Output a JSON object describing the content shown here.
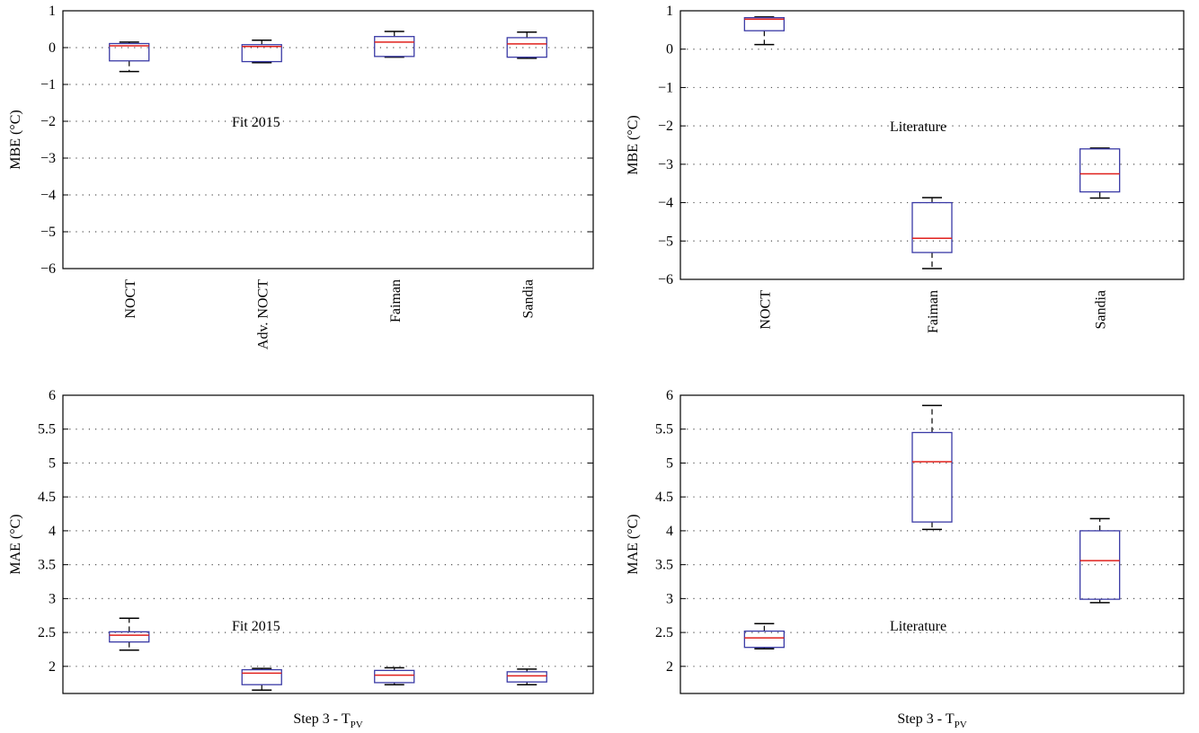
{
  "colors": {
    "box": "#3a3aa6",
    "median": "#e0201c",
    "whisker": "#000000",
    "grid": "#555555",
    "axis": "#000000"
  },
  "chart_data": [
    {
      "type": "boxplot",
      "ylabel": "MBE (°C)",
      "annotation": "Fit 2015",
      "xlabel_main": "",
      "xlabel_sub": "",
      "ylim": [
        -6,
        1
      ],
      "yticks": [
        1,
        0,
        -1,
        -2,
        -3,
        -4,
        -5,
        -6
      ],
      "ytick_labels": [
        "1",
        "0",
        "−1",
        "−2",
        "−3",
        "−4",
        "−5",
        "−6"
      ],
      "grid": true,
      "categories": [
        "NOCT",
        "Adv. NOCT",
        "Faiman",
        "Sandia"
      ],
      "boxes": [
        {
          "min": -0.65,
          "q1": -0.36,
          "median": 0.05,
          "q3": 0.11,
          "max": 0.15
        },
        {
          "min": -0.41,
          "q1": -0.38,
          "median": 0.03,
          "q3": 0.08,
          "max": 0.2
        },
        {
          "min": -0.26,
          "q1": -0.24,
          "median": 0.15,
          "q3": 0.3,
          "max": 0.44
        },
        {
          "min": -0.29,
          "q1": -0.26,
          "median": 0.1,
          "q3": 0.27,
          "max": 0.42
        }
      ]
    },
    {
      "type": "boxplot",
      "ylabel": "MBE (°C)",
      "annotation": "Literature",
      "xlabel_main": "",
      "xlabel_sub": "",
      "ylim": [
        -6,
        1
      ],
      "yticks": [
        1,
        0,
        -1,
        -2,
        -3,
        -4,
        -5,
        -6
      ],
      "ytick_labels": [
        "1",
        "0",
        "−1",
        "−2",
        "−3",
        "−4",
        "−5",
        "−6"
      ],
      "grid": true,
      "categories": [
        "NOCT",
        "Faiman",
        "Sandia"
      ],
      "boxes": [
        {
          "min": 0.12,
          "q1": 0.48,
          "median": 0.78,
          "q3": 0.82,
          "max": 0.84
        },
        {
          "min": -5.72,
          "q1": -5.3,
          "median": -4.93,
          "q3": -4.0,
          "max": -3.87
        },
        {
          "min": -3.88,
          "q1": -3.72,
          "median": -3.25,
          "q3": -2.6,
          "max": -2.58
        }
      ]
    },
    {
      "type": "boxplot",
      "ylabel": "MAE (°C)",
      "annotation": "Fit 2015",
      "xlabel_main": "Step 3 - T",
      "xlabel_sub": "PV",
      "ylim": [
        1.6,
        6
      ],
      "yticks": [
        6,
        5.5,
        5,
        4.5,
        4,
        3.5,
        3,
        2.5,
        2
      ],
      "ytick_labels": [
        "6",
        "5.5",
        "5",
        "4.5",
        "4",
        "3.5",
        "3",
        "2.5",
        "2"
      ],
      "grid": true,
      "categories": [],
      "boxes": [
        {
          "min": 2.24,
          "q1": 2.36,
          "median": 2.46,
          "q3": 2.51,
          "max": 2.71
        },
        {
          "min": 1.65,
          "q1": 1.73,
          "median": 1.9,
          "q3": 1.95,
          "max": 1.97
        },
        {
          "min": 1.73,
          "q1": 1.76,
          "median": 1.87,
          "q3": 1.94,
          "max": 1.98
        },
        {
          "min": 1.73,
          "q1": 1.77,
          "median": 1.86,
          "q3": 1.92,
          "max": 1.96
        }
      ]
    },
    {
      "type": "boxplot",
      "ylabel": "MAE (°C)",
      "annotation": "Literature",
      "xlabel_main": "Step 3 - T",
      "xlabel_sub": "PV",
      "ylim": [
        1.6,
        6
      ],
      "yticks": [
        6,
        5.5,
        5,
        4.5,
        4,
        3.5,
        3,
        2.5,
        2
      ],
      "ytick_labels": [
        "6",
        "5.5",
        "5",
        "4.5",
        "4",
        "3.5",
        "3",
        "2.5",
        "2"
      ],
      "grid": true,
      "categories": [],
      "boxes": [
        {
          "min": 2.26,
          "q1": 2.28,
          "median": 2.42,
          "q3": 2.52,
          "max": 2.63
        },
        {
          "min": 4.02,
          "q1": 4.13,
          "median": 5.02,
          "q3": 5.45,
          "max": 5.85
        },
        {
          "min": 2.94,
          "q1": 2.99,
          "median": 3.56,
          "q3": 4.0,
          "max": 4.18
        }
      ]
    }
  ]
}
